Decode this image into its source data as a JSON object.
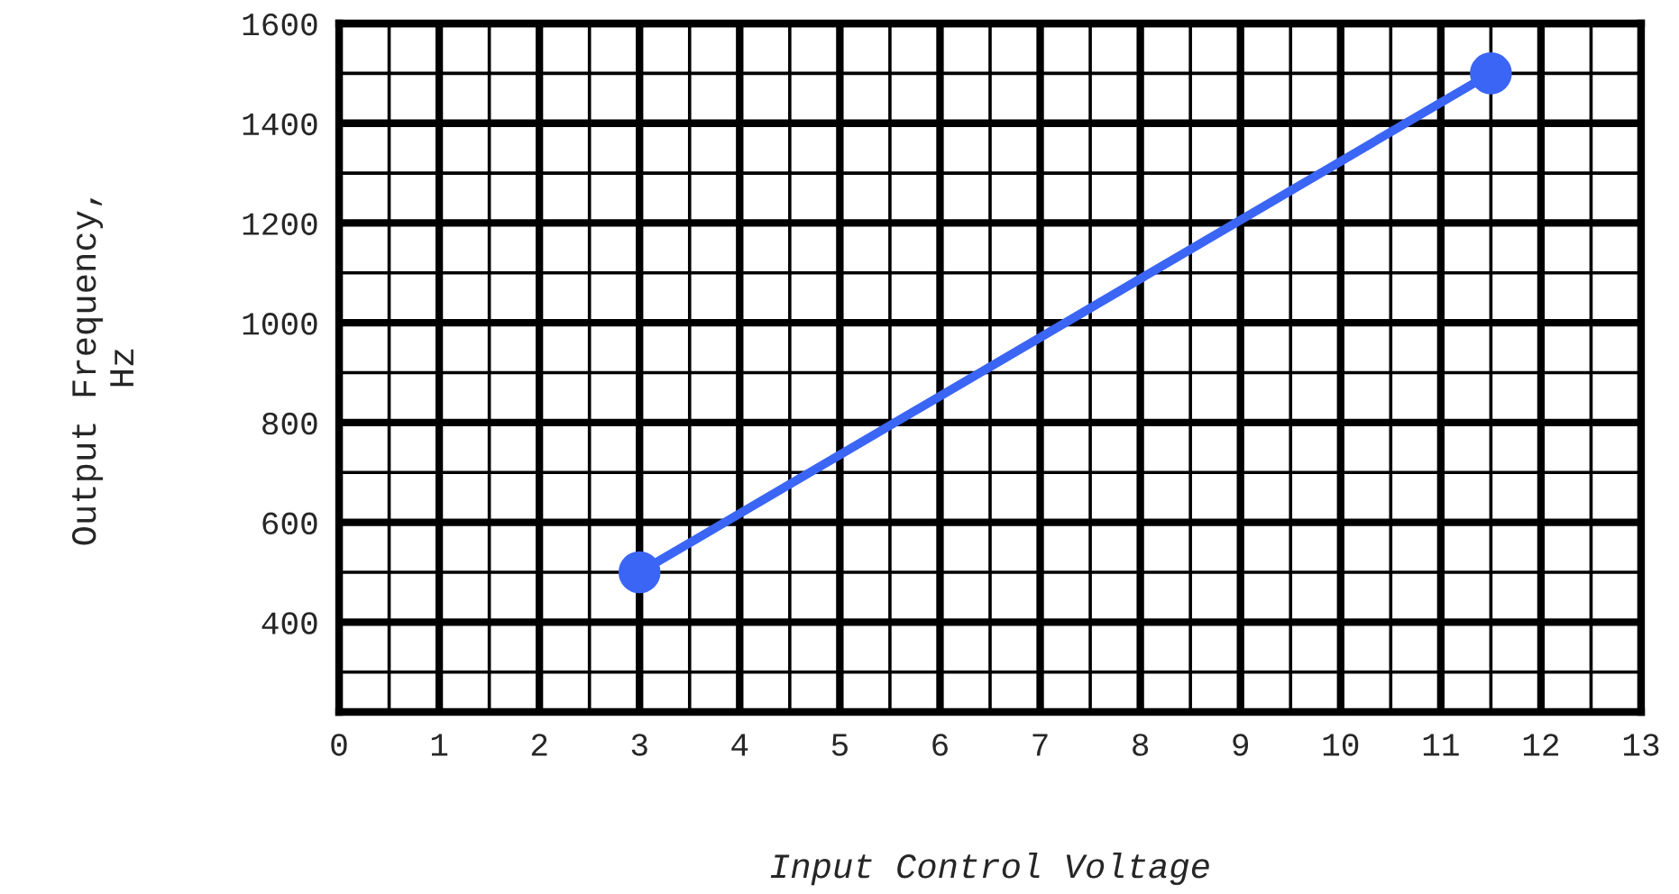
{
  "chart_data": {
    "type": "line",
    "xlabel": "Input Control Voltage",
    "ylabel": "Output Frequency,\nHz",
    "x": [
      3,
      11.5
    ],
    "series": [
      {
        "color": "#3b65f5",
        "values": [
          500,
          1500
        ]
      }
    ],
    "marker": "circle",
    "line_style": "solid",
    "grid": true,
    "xlim": [
      0,
      13
    ],
    "ylim": [
      220,
      1600
    ],
    "xticks": [
      0,
      {
        "value": 0.5,
        "label": null
      },
      1,
      {
        "value": 1.5,
        "label": null
      },
      2,
      {
        "value": 2.5,
        "label": null
      },
      3,
      {
        "value": 3.5,
        "label": null
      },
      4,
      {
        "value": 4.5,
        "label": null
      },
      5,
      {
        "value": 5.5,
        "label": null
      },
      6,
      {
        "value": 6.5,
        "label": null
      },
      7,
      {
        "value": 7.5,
        "label": null
      },
      8,
      {
        "value": 8.5,
        "label": null
      },
      9,
      {
        "value": 9.5,
        "label": null
      },
      10,
      {
        "value": 10.5,
        "label": null
      },
      11,
      {
        "value": 11.5,
        "label": null
      },
      12,
      {
        "value": 12.5,
        "label": null
      },
      13
    ],
    "yticks": [
      {
        "value": 300,
        "label": null
      },
      400,
      {
        "value": 500,
        "label": null
      },
      600,
      {
        "value": 700,
        "label": null
      },
      800,
      {
        "value": 900,
        "label": null
      },
      1000,
      {
        "value": 1100,
        "label": null
      },
      1200,
      {
        "value": 1300,
        "label": null
      },
      1400,
      {
        "value": 1500,
        "label": null
      },
      1600
    ]
  }
}
